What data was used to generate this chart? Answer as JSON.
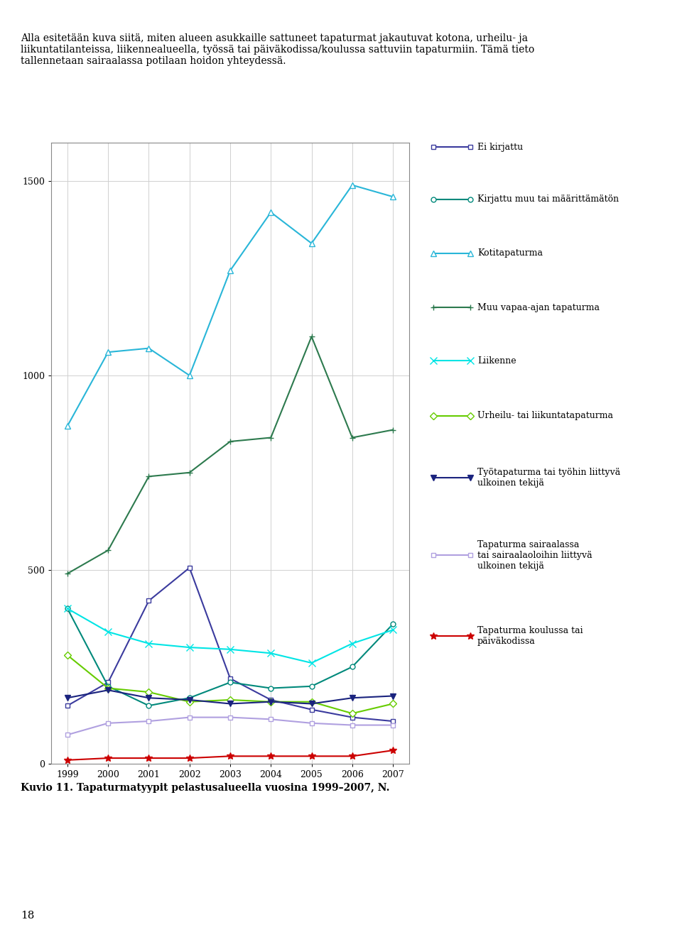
{
  "years": [
    1999,
    2000,
    2001,
    2002,
    2003,
    2004,
    2005,
    2006,
    2007
  ],
  "series": [
    {
      "key": "ei_kirjattu",
      "label": "Ei kirjattu",
      "color": "#3b3b9e",
      "marker": "s",
      "markersize": 5,
      "markerfacecolor": "white",
      "markeredgecolor": "#3b3b9e",
      "linewidth": 1.5,
      "values": [
        150,
        210,
        420,
        505,
        220,
        165,
        140,
        120,
        110
      ]
    },
    {
      "key": "kirjattu_muu",
      "label": "Kirjattu muu tai määrittämätön",
      "color": "#00897b",
      "marker": "o",
      "markersize": 5,
      "markerfacecolor": "white",
      "markeredgecolor": "#00897b",
      "linewidth": 1.5,
      "values": [
        400,
        200,
        150,
        170,
        210,
        195,
        200,
        250,
        360
      ]
    },
    {
      "key": "kotitapaturma",
      "label": "Kotitapaturma",
      "color": "#29b6d8",
      "marker": "^",
      "markersize": 6,
      "markerfacecolor": "white",
      "markeredgecolor": "#29b6d8",
      "linewidth": 1.5,
      "values": [
        870,
        1060,
        1070,
        1000,
        1270,
        1420,
        1340,
        1490,
        1460
      ]
    },
    {
      "key": "muu_vapaa",
      "label": "Muu vapaa-ajan tapaturma",
      "color": "#2d7a4e",
      "marker": "P",
      "markersize": 6,
      "markerfacecolor": "#2d7a4e",
      "markeredgecolor": "#2d7a4e",
      "linewidth": 1.5,
      "values": [
        490,
        550,
        740,
        750,
        830,
        840,
        1100,
        840,
        860
      ]
    },
    {
      "key": "liikenne",
      "label": "Liikenne",
      "color": "#00e5e5",
      "marker": "x",
      "markersize": 7,
      "markerfacecolor": "#00e5e5",
      "markeredgecolor": "#00e5e5",
      "linewidth": 1.5,
      "values": [
        400,
        340,
        310,
        300,
        295,
        285,
        260,
        310,
        345
      ]
    },
    {
      "key": "urheilu",
      "label": "Urheilu- tai liikuntatapaturma",
      "color": "#66cc00",
      "marker": "D",
      "markersize": 5,
      "markerfacecolor": "white",
      "markeredgecolor": "#66cc00",
      "linewidth": 1.5,
      "values": [
        280,
        195,
        185,
        160,
        165,
        160,
        160,
        130,
        155
      ]
    },
    {
      "key": "tyotapaturma",
      "label": "Työtapaturma tai työhin liittyvä\nulkoinen tekijä",
      "color": "#1a237e",
      "marker": "v",
      "markersize": 6,
      "markerfacecolor": "#1a237e",
      "markeredgecolor": "#1a237e",
      "linewidth": 1.5,
      "values": [
        170,
        190,
        170,
        165,
        155,
        160,
        155,
        170,
        175
      ]
    },
    {
      "key": "tapaturma_sairaala",
      "label": "Tapaturma sairaalassa\ntai sairaalaoloihin liittyvä\nulkoinen tekijä",
      "color": "#b0a0e0",
      "marker": "s",
      "markersize": 5,
      "markerfacecolor": "white",
      "markeredgecolor": "#b0a0e0",
      "linewidth": 1.5,
      "values": [
        75,
        105,
        110,
        120,
        120,
        115,
        105,
        100,
        100
      ]
    },
    {
      "key": "tapaturma_koulu",
      "label": "Tapaturma koulussa tai\npäiväkodissa",
      "color": "#cc0000",
      "marker": "*",
      "markersize": 7,
      "markerfacecolor": "#cc0000",
      "markeredgecolor": "#cc0000",
      "linewidth": 1.5,
      "values": [
        10,
        15,
        15,
        15,
        20,
        20,
        20,
        20,
        35
      ]
    }
  ],
  "ylim": [
    0,
    1600
  ],
  "yticks": [
    0,
    500,
    1000,
    1500
  ],
  "title_text": "Alla esitetään kuva siitä, miten alueen asukkaille sattuneet tapaturmat jakautuvat kotona, urheilu- ja\nliikuntatilanteissa, liikennealueella, työssä tai päiväkodissa/koulussa sattuviin tapaturmiin. Tämä tieto\ntallennetaan sairaalassa potilaan hoidon yhteydessä.",
  "caption": "Kuvio 11. Tapaturmatyypit pelastusalueella vuosina 1999–2007, N.",
  "background_color": "#ffffff",
  "grid_color": "#d0d0d0",
  "page_number": "18"
}
